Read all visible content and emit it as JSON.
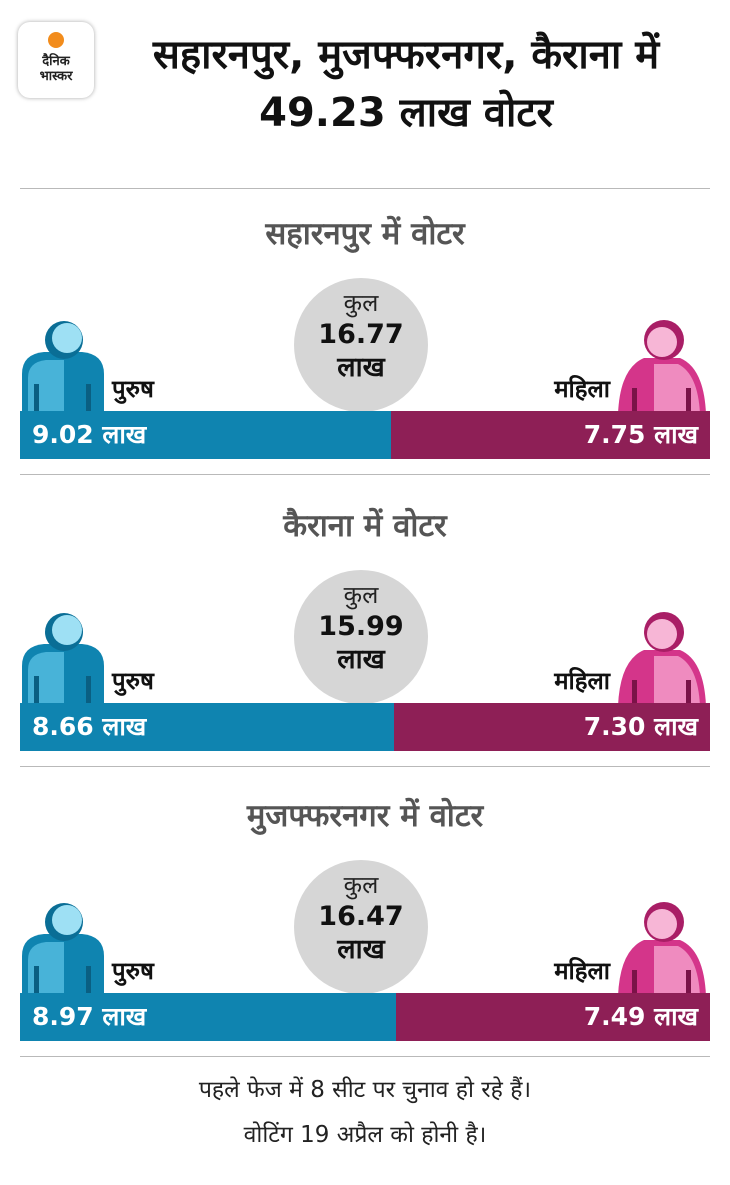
{
  "logo": {
    "line1": "दैनिक",
    "line2": "भास्कर",
    "dot_color": "#f28c1c"
  },
  "headline": "सहारनपुर, मुजफ्फरनगर, कैराना में 49.23 लाख वोटर",
  "labels": {
    "male": "पुरुष",
    "female": "महिला",
    "total": "कुल"
  },
  "colors": {
    "male": "#0f84b0",
    "female": "#8e1f56",
    "circle": "#d6d6d6",
    "male_icon": "male-voter-icon",
    "female_icon": "female-voter-icon"
  },
  "chart_data": [
    {
      "type": "bar",
      "title": "सहारनपुर में वोटर",
      "total": "16.77",
      "unit": "लाख",
      "categories": [
        "पुरुष",
        "महिला"
      ],
      "values": [
        9.02,
        7.75
      ],
      "value_labels": [
        "9.02 लाख",
        "7.75 लाख"
      ]
    },
    {
      "type": "bar",
      "title": "कैराना में वोटर",
      "total": "15.99",
      "unit": "लाख",
      "categories": [
        "पुरुष",
        "महिला"
      ],
      "values": [
        8.66,
        7.3
      ],
      "value_labels": [
        "8.66 लाख",
        "7.30 लाख"
      ]
    },
    {
      "type": "bar",
      "title": "मुजफ्फरनगर में वोटर",
      "total": "16.47",
      "unit": "लाख",
      "categories": [
        "पुरुष",
        "महिला"
      ],
      "values": [
        8.97,
        7.49
      ],
      "value_labels": [
        "8.97 लाख",
        "7.49 लाख"
      ]
    }
  ],
  "footnote": {
    "line1": "पहले फेज में 8 सीट पर चुनाव हो रहे हैं।",
    "line2": "वोटिंग 19 अप्रैल को होनी है।"
  }
}
